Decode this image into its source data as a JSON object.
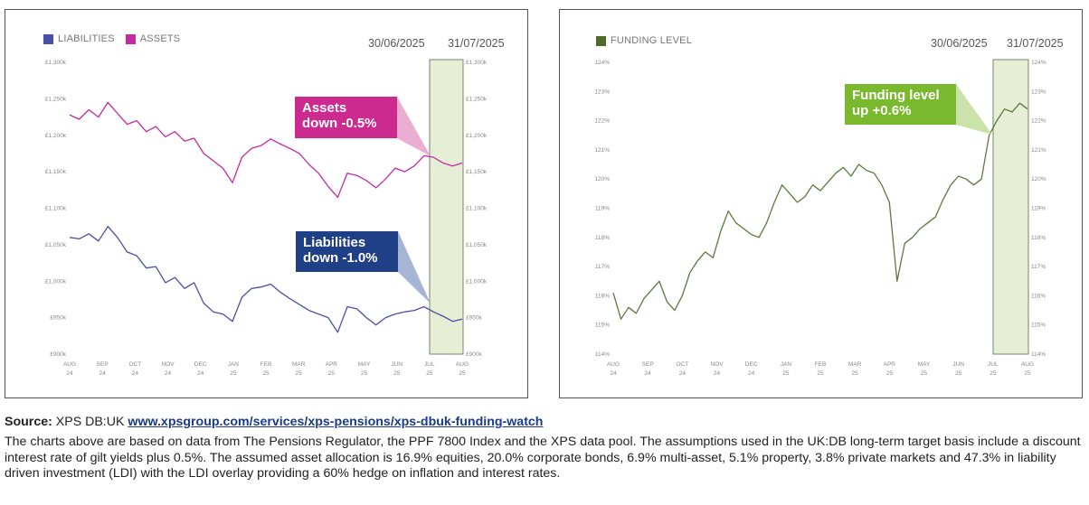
{
  "chart_data": [
    {
      "type": "line",
      "legend": [
        "LIABILITIES",
        "ASSETS"
      ],
      "highlight_dates": [
        "30/06/2025",
        "31/07/2025"
      ],
      "y_ticks": [
        "£1,300k",
        "£1,250k",
        "£1,200k",
        "£1,150k",
        "£1,100k",
        "£1,050k",
        "£1,000k",
        "£950k",
        "£900k"
      ],
      "ylim": [
        900,
        1300
      ],
      "x_ticks": [
        [
          "AUG",
          "24"
        ],
        [
          "SEP",
          "24"
        ],
        [
          "OCT",
          "24"
        ],
        [
          "NOV",
          "24"
        ],
        [
          "DEC",
          "24"
        ],
        [
          "JAN",
          "25"
        ],
        [
          "FEB",
          "25"
        ],
        [
          "MAR",
          "25"
        ],
        [
          "APR",
          "25"
        ],
        [
          "MAY",
          "25"
        ],
        [
          "JUN",
          "25"
        ],
        [
          "JUL",
          "25"
        ],
        [
          "AUG",
          "25"
        ]
      ],
      "series": [
        {
          "name": "ASSETS",
          "color": "#c42aa6",
          "values": [
            1228,
            1222,
            1235,
            1225,
            1245,
            1230,
            1215,
            1220,
            1205,
            1212,
            1198,
            1205,
            1192,
            1196,
            1175,
            1165,
            1155,
            1135,
            1170,
            1182,
            1186,
            1195,
            1188,
            1182,
            1175,
            1160,
            1148,
            1130,
            1115,
            1148,
            1145,
            1138,
            1128,
            1140,
            1155,
            1150,
            1158,
            1172,
            1170,
            1162,
            1158,
            1162
          ]
        },
        {
          "name": "LIABILITIES",
          "color": "#4a4fa8",
          "values": [
            1060,
            1058,
            1065,
            1055,
            1075,
            1060,
            1040,
            1035,
            1018,
            1020,
            998,
            1005,
            990,
            998,
            970,
            958,
            955,
            945,
            978,
            990,
            992,
            996,
            985,
            976,
            968,
            960,
            955,
            950,
            930,
            965,
            962,
            950,
            940,
            950,
            955,
            958,
            960,
            965,
            958,
            952,
            945,
            948
          ]
        }
      ],
      "callouts": [
        {
          "text_line1": "Assets",
          "text_line2": "down -0.5%",
          "color": "#cc2a8f"
        },
        {
          "text_line1": "Liabilities",
          "text_line2": "down -1.0%",
          "color": "#1f3f87"
        }
      ]
    },
    {
      "type": "line",
      "legend": [
        "FUNDING LEVEL"
      ],
      "highlight_dates": [
        "30/06/2025",
        "31/07/2025"
      ],
      "y_ticks": [
        "124%",
        "123%",
        "122%",
        "121%",
        "120%",
        "119%",
        "118%",
        "117%",
        "116%",
        "115%",
        "114%"
      ],
      "ylim": [
        114,
        124
      ],
      "x_ticks": [
        [
          "AUG",
          "24"
        ],
        [
          "SEP",
          "24"
        ],
        [
          "OCT",
          "24"
        ],
        [
          "NOV",
          "24"
        ],
        [
          "DEC",
          "24"
        ],
        [
          "JAN",
          "25"
        ],
        [
          "FEB",
          "25"
        ],
        [
          "MAR",
          "25"
        ],
        [
          "APR",
          "25"
        ],
        [
          "MAY",
          "25"
        ],
        [
          "JUN",
          "25"
        ],
        [
          "JUL",
          "25"
        ],
        [
          "AUG",
          "25"
        ]
      ],
      "series": [
        {
          "name": "FUNDING LEVEL",
          "color": "#5a7a3a",
          "values": [
            116.1,
            115.2,
            115.6,
            115.4,
            115.9,
            116.2,
            116.5,
            115.8,
            115.5,
            116.0,
            116.8,
            117.2,
            117.5,
            117.3,
            118.2,
            118.9,
            118.5,
            118.3,
            118.1,
            118.0,
            118.5,
            119.2,
            119.8,
            119.5,
            119.2,
            119.4,
            119.8,
            119.6,
            119.9,
            120.2,
            120.4,
            120.1,
            120.5,
            120.3,
            120.2,
            119.8,
            119.2,
            116.5,
            117.8,
            118.0,
            118.3,
            118.5,
            118.7,
            119.3,
            119.8,
            120.1,
            120.0,
            119.8,
            120.0,
            121.5,
            122.0,
            122.4,
            122.3,
            122.6,
            122.4
          ]
        }
      ],
      "callouts": [
        {
          "text_line1": "Funding level",
          "text_line2": "up +0.6%",
          "color": "#7ab82e"
        }
      ]
    }
  ],
  "footer": {
    "source_label": "Source:",
    "source_text": " XPS DB:UK ",
    "source_link": "www.xpsgroup.com/services/xps-pensions/xps-dbuk-funding-watch",
    "notes": "The charts above are based on data from The Pensions Regulator, the PPF 7800 Index and the XPS data pool. The assumptions used in the UK:DB long-term target basis include a discount interest rate of gilt yields plus 0.5%. The assumed asset allocation is 16.9% equities, 20.0% corporate bonds, 6.9% multi-asset, 5.1% property, 3.8% private markets and 47.3% in liability driven investment (LDI) with the LDI overlay providing a 60% hedge on inflation and interest rates."
  }
}
